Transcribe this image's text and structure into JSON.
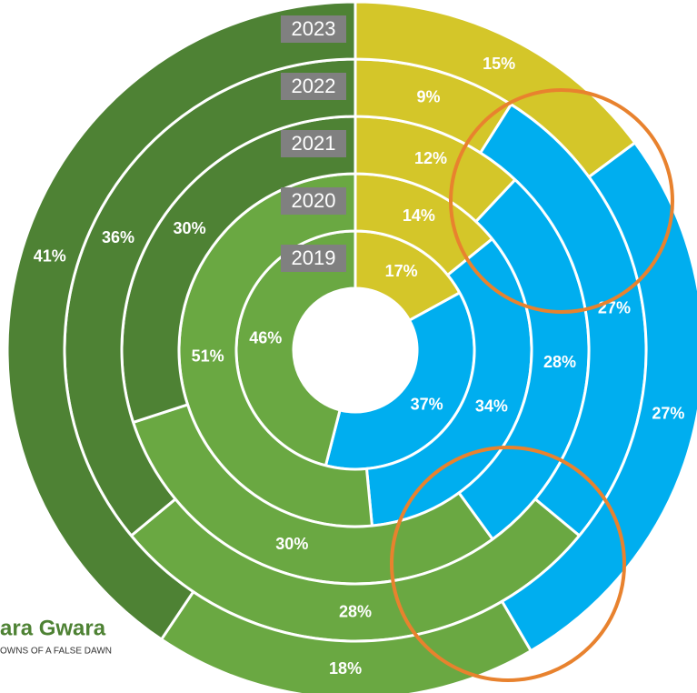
{
  "chart_data": {
    "type": "donut",
    "categories": [
      "2019",
      "2020",
      "2021",
      "2022",
      "2023"
    ],
    "series": [
      {
        "color": "#d4c629",
        "values": [
          17,
          14,
          12,
          9,
          15
        ],
        "value_labels": [
          "17%",
          "14%",
          "12%",
          "9%",
          "15%"
        ]
      },
      {
        "color": "#00aeef",
        "values": [
          37,
          34,
          28,
          27,
          27
        ],
        "value_labels": [
          "37%",
          "34%",
          "28%",
          "27%",
          "27%"
        ]
      },
      {
        "color": "#6aa842",
        "values": [
          46,
          51,
          30,
          28,
          18
        ],
        "value_labels": [
          "46%",
          "51%",
          "30%",
          "28%",
          "18%"
        ]
      },
      {
        "color": "#4e8234",
        "values": [
          null,
          null,
          30,
          36,
          41
        ],
        "value_labels": [
          null,
          null,
          "30%",
          "36%",
          "41%"
        ]
      }
    ]
  },
  "logo": {
    "title": "ara Gwara",
    "subtitle": "OWNS OF A FALSE DAWN"
  }
}
